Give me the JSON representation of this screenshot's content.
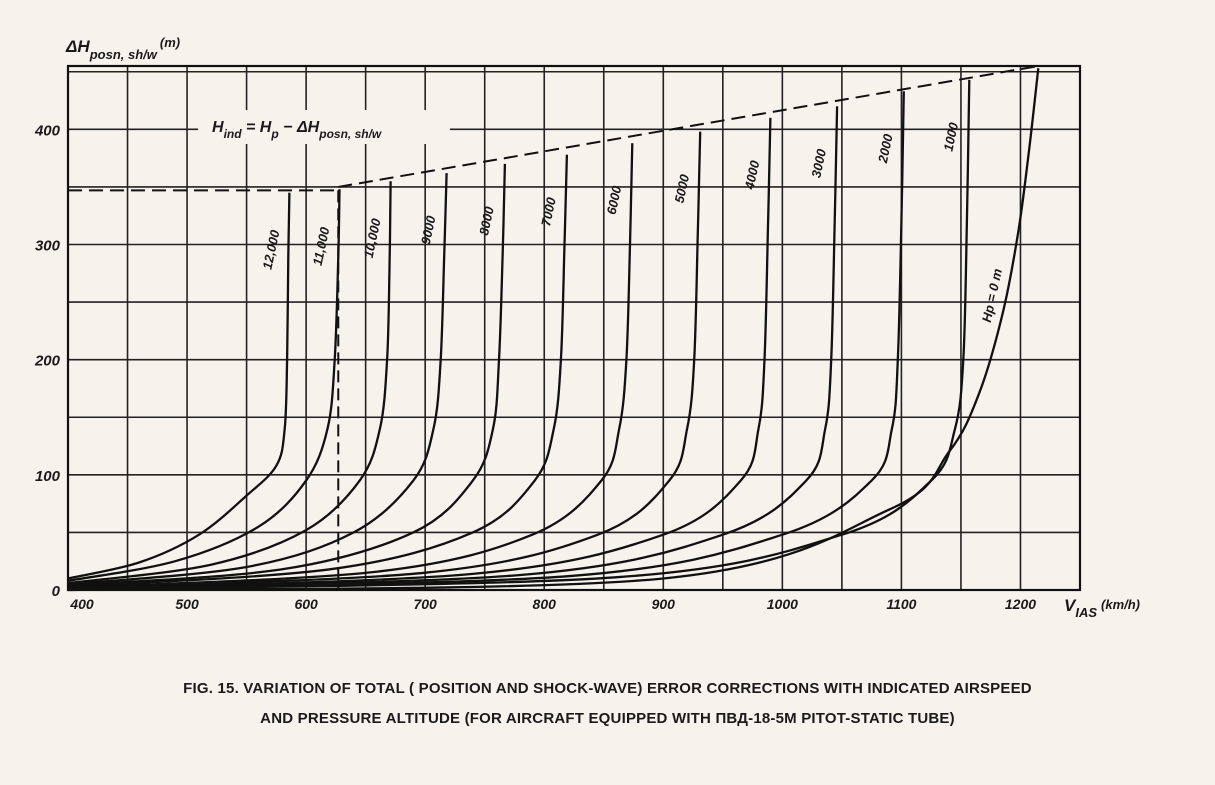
{
  "chart_data": {
    "type": "line",
    "ylabel_base": "ΔH",
    "ylabel_sub": "posn, sh/w",
    "ylabel_unit": "(m)",
    "xlabel_base": "V",
    "xlabel_sub": "IAS",
    "xlabel_unit": "(km/h)",
    "xlim": [
      400,
      1250
    ],
    "ylim": [
      0,
      455
    ],
    "x_ticks": [
      400,
      500,
      600,
      700,
      800,
      900,
      1000,
      1100,
      1200
    ],
    "y_ticks": [
      0,
      100,
      200,
      300,
      400
    ],
    "grid": true,
    "formula": {
      "parts": [
        "H",
        "ind",
        " = H",
        "p",
        " − ΔH",
        "posn, sh/w"
      ]
    },
    "envelope": [
      [
        627,
        350
      ],
      [
        1215,
        455
      ]
    ],
    "example": {
      "x": 627,
      "y": 347
    },
    "series": [
      {
        "name": "12 000",
        "label": "12,000",
        "points": [
          [
            400,
            10
          ],
          [
            460,
            24
          ],
          [
            510,
            48
          ],
          [
            550,
            82
          ],
          [
            575,
            108
          ],
          [
            582,
            140
          ],
          [
            584,
            200
          ],
          [
            585,
            290
          ],
          [
            586,
            345
          ]
        ]
      },
      {
        "name": "11 000",
        "label": "11,000",
        "points": [
          [
            400,
            8
          ],
          [
            490,
            25
          ],
          [
            560,
            55
          ],
          [
            600,
            95
          ],
          [
            618,
            140
          ],
          [
            624,
            200
          ],
          [
            627,
            290
          ],
          [
            628,
            348
          ]
        ]
      },
      {
        "name": "10 000",
        "label": "10,000",
        "points": [
          [
            400,
            6
          ],
          [
            520,
            22
          ],
          [
            600,
            52
          ],
          [
            645,
            95
          ],
          [
            662,
            140
          ],
          [
            668,
            200
          ],
          [
            670,
            280
          ],
          [
            671,
            355
          ]
        ]
      },
      {
        "name": "9000",
        "label": "9000",
        "points": [
          [
            400,
            5
          ],
          [
            550,
            20
          ],
          [
            640,
            50
          ],
          [
            690,
            95
          ],
          [
            707,
            140
          ],
          [
            713,
            200
          ],
          [
            716,
            290
          ],
          [
            718,
            362
          ]
        ]
      },
      {
        "name": "8000",
        "label": "8000",
        "points": [
          [
            400,
            4
          ],
          [
            580,
            18
          ],
          [
            690,
            50
          ],
          [
            740,
            95
          ],
          [
            757,
            140
          ],
          [
            762,
            200
          ],
          [
            765,
            290
          ],
          [
            767,
            370
          ]
        ]
      },
      {
        "name": "7000",
        "label": "7000",
        "points": [
          [
            400,
            3
          ],
          [
            620,
            18
          ],
          [
            740,
            50
          ],
          [
            792,
            95
          ],
          [
            808,
            140
          ],
          [
            814,
            200
          ],
          [
            817,
            300
          ],
          [
            819,
            378
          ]
        ]
      },
      {
        "name": "6000",
        "label": "6000",
        "points": [
          [
            400,
            2
          ],
          [
            660,
            16
          ],
          [
            790,
            48
          ],
          [
            848,
            95
          ],
          [
            863,
            140
          ],
          [
            869,
            200
          ],
          [
            872,
            300
          ],
          [
            874,
            388
          ]
        ]
      },
      {
        "name": "5000",
        "label": "5000",
        "points": [
          [
            400,
            2
          ],
          [
            700,
            15
          ],
          [
            845,
            48
          ],
          [
            905,
            95
          ],
          [
            920,
            140
          ],
          [
            926,
            200
          ],
          [
            929,
            310
          ],
          [
            931,
            398
          ]
        ]
      },
      {
        "name": "4000",
        "label": "4000",
        "points": [
          [
            400,
            1
          ],
          [
            740,
            14
          ],
          [
            900,
            48
          ],
          [
            965,
            95
          ],
          [
            980,
            140
          ],
          [
            985,
            200
          ],
          [
            988,
            320
          ],
          [
            990,
            410
          ]
        ]
      },
      {
        "name": "3000",
        "label": "3000",
        "points": [
          [
            400,
            1
          ],
          [
            780,
            13
          ],
          [
            950,
            48
          ],
          [
            1020,
            95
          ],
          [
            1036,
            140
          ],
          [
            1041,
            200
          ],
          [
            1044,
            320
          ],
          [
            1046,
            420
          ]
        ]
      },
      {
        "name": "2000",
        "label": "2000",
        "points": [
          [
            400,
            1
          ],
          [
            820,
            12
          ],
          [
            1000,
            48
          ],
          [
            1075,
            95
          ],
          [
            1092,
            140
          ],
          [
            1097,
            200
          ],
          [
            1100,
            320
          ],
          [
            1102,
            433
          ]
        ]
      },
      {
        "name": "1000",
        "label": "1000",
        "points": [
          [
            400,
            0.5
          ],
          [
            860,
            11
          ],
          [
            1050,
            48
          ],
          [
            1125,
            95
          ],
          [
            1145,
            140
          ],
          [
            1152,
            200
          ],
          [
            1155,
            320
          ],
          [
            1157,
            443
          ]
        ]
      },
      {
        "name": "Hp = 0 m",
        "label": "Hp = 0 m",
        "points": [
          [
            400,
            0
          ],
          [
            900,
            10
          ],
          [
            1090,
            70
          ],
          [
            1140,
            120
          ],
          [
            1165,
            170
          ],
          [
            1185,
            240
          ],
          [
            1198,
            310
          ],
          [
            1207,
            380
          ],
          [
            1215,
            453
          ]
        ]
      }
    ]
  },
  "caption": {
    "line1": "FIG. 15. VARIATION OF TOTAL ( POSITION AND SHOCK-WAVE) ERROR CORRECTIONS WITH INDICATED AIRSPEED",
    "line2": "AND PRESSURE ALTITUDE (FOR AIRCRAFT   EQUIPPED WITH  ПВД-18-5М PITOT-STATIC TUBE)"
  }
}
